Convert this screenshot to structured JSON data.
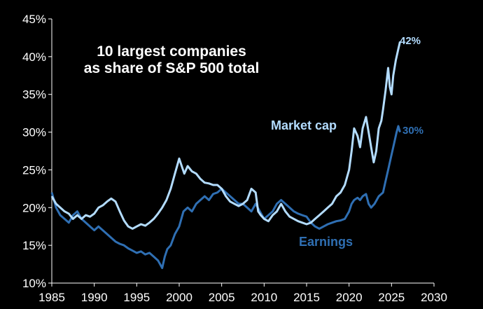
{
  "chart_data": {
    "type": "line",
    "title": [
      "10 largest companies",
      "as share of S&P 500 total"
    ],
    "xlabel": "",
    "ylabel": "",
    "xlim": [
      1985,
      2030
    ],
    "ylim": [
      10,
      45
    ],
    "x_ticks": [
      "1985",
      "1990",
      "1995",
      "2000",
      "2005",
      "2010",
      "2015",
      "2020",
      "2025",
      "2030"
    ],
    "y_ticks": [
      "10%",
      "15%",
      "20%",
      "25%",
      "30%",
      "35%",
      "40%",
      "45%"
    ],
    "grid": false,
    "legend": "none",
    "series": [
      {
        "name": "Market cap",
        "color": "#b3dcff",
        "end_label": "42%",
        "points": [
          [
            1985.0,
            21.5
          ],
          [
            1985.5,
            20.5
          ],
          [
            1986.0,
            20.0
          ],
          [
            1986.5,
            19.5
          ],
          [
            1987.0,
            19.2
          ],
          [
            1987.5,
            18.5
          ],
          [
            1988.0,
            19.0
          ],
          [
            1988.5,
            18.5
          ],
          [
            1989.0,
            19.0
          ],
          [
            1989.5,
            18.8
          ],
          [
            1990.0,
            19.2
          ],
          [
            1990.5,
            20.0
          ],
          [
            1991.0,
            20.3
          ],
          [
            1991.5,
            20.8
          ],
          [
            1992.0,
            21.2
          ],
          [
            1992.5,
            20.8
          ],
          [
            1993.0,
            19.5
          ],
          [
            1993.5,
            18.3
          ],
          [
            1994.0,
            17.5
          ],
          [
            1994.5,
            17.2
          ],
          [
            1995.0,
            17.5
          ],
          [
            1995.5,
            17.8
          ],
          [
            1996.0,
            17.6
          ],
          [
            1996.5,
            18.0
          ],
          [
            1997.0,
            18.5
          ],
          [
            1997.5,
            19.2
          ],
          [
            1998.0,
            20.0
          ],
          [
            1998.5,
            21.0
          ],
          [
            1999.0,
            22.5
          ],
          [
            1999.5,
            24.5
          ],
          [
            2000.0,
            26.5
          ],
          [
            2000.3,
            25.5
          ],
          [
            2000.6,
            24.5
          ],
          [
            2001.0,
            25.5
          ],
          [
            2001.5,
            24.8
          ],
          [
            2002.0,
            24.5
          ],
          [
            2002.5,
            23.8
          ],
          [
            2003.0,
            23.3
          ],
          [
            2003.5,
            23.2
          ],
          [
            2004.0,
            23.0
          ],
          [
            2004.5,
            23.0
          ],
          [
            2005.0,
            22.5
          ],
          [
            2005.5,
            21.5
          ],
          [
            2006.0,
            20.8
          ],
          [
            2006.5,
            20.5
          ],
          [
            2007.0,
            20.2
          ],
          [
            2007.5,
            20.5
          ],
          [
            2008.0,
            21.0
          ],
          [
            2008.5,
            22.5
          ],
          [
            2009.0,
            22.0
          ],
          [
            2009.3,
            19.5
          ],
          [
            2009.6,
            19.0
          ],
          [
            2010.0,
            18.5
          ],
          [
            2010.5,
            18.2
          ],
          [
            2011.0,
            19.0
          ],
          [
            2011.5,
            19.5
          ],
          [
            2012.0,
            20.5
          ],
          [
            2012.5,
            19.5
          ],
          [
            2013.0,
            18.8
          ],
          [
            2013.5,
            18.5
          ],
          [
            2014.0,
            18.2
          ],
          [
            2014.5,
            18.0
          ],
          [
            2015.0,
            17.8
          ],
          [
            2015.5,
            18.0
          ],
          [
            2016.0,
            18.5
          ],
          [
            2016.5,
            19.0
          ],
          [
            2017.0,
            19.5
          ],
          [
            2017.5,
            20.0
          ],
          [
            2018.0,
            20.5
          ],
          [
            2018.5,
            21.5
          ],
          [
            2019.0,
            22.0
          ],
          [
            2019.5,
            23.0
          ],
          [
            2020.0,
            25.0
          ],
          [
            2020.3,
            27.5
          ],
          [
            2020.6,
            30.5
          ],
          [
            2021.0,
            29.5
          ],
          [
            2021.3,
            28.0
          ],
          [
            2021.6,
            30.5
          ],
          [
            2022.0,
            32.0
          ],
          [
            2022.3,
            30.0
          ],
          [
            2022.6,
            28.0
          ],
          [
            2022.9,
            26.0
          ],
          [
            2023.2,
            27.5
          ],
          [
            2023.5,
            30.5
          ],
          [
            2023.8,
            31.5
          ],
          [
            2024.0,
            33.0
          ],
          [
            2024.3,
            35.5
          ],
          [
            2024.6,
            38.5
          ],
          [
            2024.8,
            36.0
          ],
          [
            2025.0,
            35.0
          ],
          [
            2025.2,
            37.5
          ],
          [
            2025.5,
            39.5
          ],
          [
            2025.8,
            41.0
          ],
          [
            2026.0,
            42.0
          ]
        ]
      },
      {
        "name": "Earnings",
        "color": "#2f6fb3",
        "end_label": "30%",
        "points": [
          [
            1985.0,
            22.0
          ],
          [
            1985.5,
            20.0
          ],
          [
            1986.0,
            19.0
          ],
          [
            1986.5,
            18.5
          ],
          [
            1987.0,
            18.0
          ],
          [
            1987.5,
            19.0
          ],
          [
            1988.0,
            19.5
          ],
          [
            1988.5,
            18.5
          ],
          [
            1989.0,
            18.0
          ],
          [
            1989.5,
            17.5
          ],
          [
            1990.0,
            17.0
          ],
          [
            1990.5,
            17.5
          ],
          [
            1991.0,
            17.0
          ],
          [
            1991.5,
            16.5
          ],
          [
            1992.0,
            16.0
          ],
          [
            1992.5,
            15.5
          ],
          [
            1993.0,
            15.2
          ],
          [
            1993.5,
            15.0
          ],
          [
            1994.0,
            14.6
          ],
          [
            1994.5,
            14.3
          ],
          [
            1995.0,
            14.0
          ],
          [
            1995.5,
            14.2
          ],
          [
            1996.0,
            13.8
          ],
          [
            1996.5,
            14.0
          ],
          [
            1997.0,
            13.5
          ],
          [
            1997.5,
            13.0
          ],
          [
            1998.0,
            12.0
          ],
          [
            1998.3,
            13.5
          ],
          [
            1998.6,
            14.5
          ],
          [
            1999.0,
            15.0
          ],
          [
            1999.5,
            16.5
          ],
          [
            2000.0,
            17.5
          ],
          [
            2000.5,
            19.5
          ],
          [
            2001.0,
            20.0
          ],
          [
            2001.5,
            19.5
          ],
          [
            2002.0,
            20.5
          ],
          [
            2002.5,
            21.0
          ],
          [
            2003.0,
            21.5
          ],
          [
            2003.5,
            21.0
          ],
          [
            2004.0,
            21.8
          ],
          [
            2004.5,
            22.0
          ],
          [
            2005.0,
            22.5
          ],
          [
            2005.5,
            22.0
          ],
          [
            2006.0,
            21.5
          ],
          [
            2006.5,
            21.0
          ],
          [
            2007.0,
            20.5
          ],
          [
            2007.5,
            20.5
          ],
          [
            2008.0,
            20.0
          ],
          [
            2008.5,
            19.5
          ],
          [
            2009.0,
            20.5
          ],
          [
            2009.5,
            19.5
          ],
          [
            2010.0,
            18.5
          ],
          [
            2010.5,
            19.0
          ],
          [
            2011.0,
            19.5
          ],
          [
            2011.5,
            20.5
          ],
          [
            2012.0,
            21.0
          ],
          [
            2012.5,
            20.5
          ],
          [
            2013.0,
            20.0
          ],
          [
            2013.5,
            19.5
          ],
          [
            2014.0,
            19.2
          ],
          [
            2014.5,
            19.0
          ],
          [
            2015.0,
            18.8
          ],
          [
            2015.5,
            18.0
          ],
          [
            2016.0,
            17.5
          ],
          [
            2016.5,
            17.2
          ],
          [
            2017.0,
            17.5
          ],
          [
            2017.5,
            17.8
          ],
          [
            2018.0,
            18.0
          ],
          [
            2018.5,
            18.2
          ],
          [
            2019.0,
            18.3
          ],
          [
            2019.5,
            18.5
          ],
          [
            2020.0,
            19.5
          ],
          [
            2020.3,
            20.5
          ],
          [
            2020.6,
            21.0
          ],
          [
            2021.0,
            21.3
          ],
          [
            2021.3,
            21.0
          ],
          [
            2021.6,
            21.5
          ],
          [
            2022.0,
            21.8
          ],
          [
            2022.3,
            20.5
          ],
          [
            2022.6,
            20.0
          ],
          [
            2023.0,
            20.5
          ],
          [
            2023.5,
            21.5
          ],
          [
            2024.0,
            22.0
          ],
          [
            2024.3,
            23.5
          ],
          [
            2024.6,
            25.0
          ],
          [
            2025.0,
            27.0
          ],
          [
            2025.3,
            28.5
          ],
          [
            2025.6,
            30.0
          ],
          [
            2025.8,
            30.8
          ],
          [
            2026.0,
            30.0
          ]
        ]
      }
    ]
  }
}
